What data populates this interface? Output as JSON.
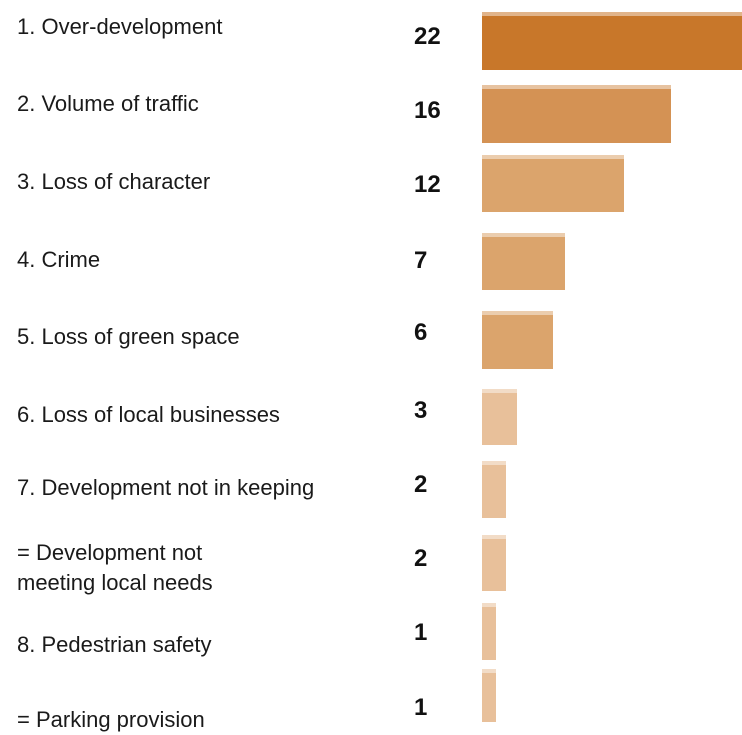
{
  "chart_data": {
    "type": "bar",
    "orientation": "horizontal",
    "title": "",
    "xlabel": "",
    "ylabel": "",
    "xlim": [
      0,
      22
    ],
    "grid": false,
    "legend": "none",
    "categories": [
      "1. Over-development",
      "2. Volume of traffic",
      "3. Loss of character",
      "4. Crime",
      "5. Loss of green space",
      "6. Loss of local businesses",
      "7. Development not in keeping",
      "= Development not\nmeeting local needs",
      "8. Pedestrian safety",
      "= Parking provision"
    ],
    "values": [
      22,
      16,
      12,
      7,
      6,
      3,
      2,
      2,
      1,
      1
    ],
    "value_labels": [
      "22",
      "16",
      "12",
      "7",
      "6",
      "3",
      "2",
      "2",
      "1",
      "1"
    ],
    "colors": {
      "top": "#c8772a",
      "high": "#d49254",
      "mid": "#dba46c",
      "low": "#e8c09a"
    }
  }
}
